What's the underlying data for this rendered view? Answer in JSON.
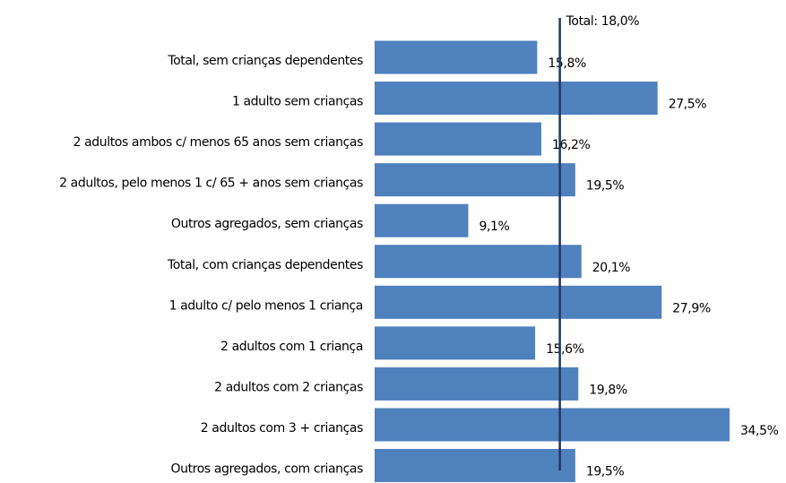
{
  "chart_data": {
    "type": "barh",
    "categories": [
      "Total, sem crianças dependentes",
      "1 adulto sem crianças",
      "2 adultos ambos c/ menos 65 anos sem crianças",
      "2 adultos, pelo menos 1 c/ 65 + anos sem crianças",
      "Outros agregados, sem crianças",
      "Total, com crianças dependentes",
      "1 adulto c/ pelo menos 1 criança",
      "2 adultos com 1 criança",
      "2 adultos com 2 crianças",
      "2 adultos com 3 + crianças",
      "Outros agregados, com crianças"
    ],
    "values": [
      15.8,
      27.5,
      16.2,
      19.5,
      9.1,
      20.1,
      27.9,
      15.6,
      19.8,
      34.5,
      19.5
    ],
    "value_labels": [
      "15,8%",
      "27,5%",
      "16,2%",
      "19,5%",
      "9,1%",
      "20,1%",
      "27,9%",
      "15,6%",
      "19,8%",
      "34,5%",
      "19,5%"
    ],
    "color": "#4f81bd",
    "reference_line": {
      "value": 18.0,
      "label": "Total: 18,0%",
      "color": "#1f3864"
    }
  }
}
